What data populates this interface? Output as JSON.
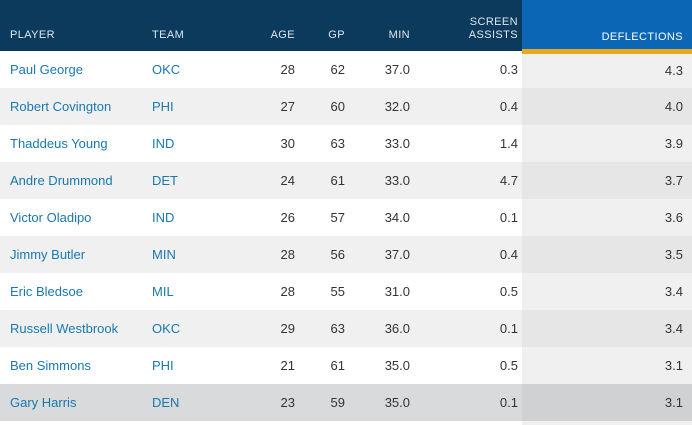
{
  "colors": {
    "header_bg": "#0c3a5d",
    "selected_header_bg": "#0b67b5",
    "accent_gold": "#eaa821",
    "link_blue": "#1878b0",
    "row_alt_bg": "#f0f0f0",
    "highlight_row_bg": "#d9dadb",
    "body_text": "#333333"
  },
  "table": {
    "highlighted_row_index": 9,
    "columns": [
      {
        "key": "player",
        "label": "PLAYER",
        "align": "left",
        "selected": false
      },
      {
        "key": "team",
        "label": "TEAM",
        "align": "left",
        "selected": false
      },
      {
        "key": "age",
        "label": "AGE",
        "align": "right",
        "selected": false
      },
      {
        "key": "gp",
        "label": "GP",
        "align": "right",
        "selected": false
      },
      {
        "key": "min",
        "label": "MIN",
        "align": "right",
        "selected": false
      },
      {
        "key": "screen_assists",
        "label": "SCREEN ASSISTS",
        "align": "right",
        "selected": false
      },
      {
        "key": "deflections",
        "label": "DEFLECTIONS",
        "align": "right",
        "selected": true
      }
    ],
    "rows": [
      {
        "player": "Paul George",
        "team": "OKC",
        "age": "28",
        "gp": "62",
        "min": "37.0",
        "screen_assists": "0.3",
        "deflections": "4.3"
      },
      {
        "player": "Robert Covington",
        "team": "PHI",
        "age": "27",
        "gp": "60",
        "min": "32.0",
        "screen_assists": "0.4",
        "deflections": "4.0"
      },
      {
        "player": "Thaddeus Young",
        "team": "IND",
        "age": "30",
        "gp": "63",
        "min": "33.0",
        "screen_assists": "1.4",
        "deflections": "3.9"
      },
      {
        "player": "Andre Drummond",
        "team": "DET",
        "age": "24",
        "gp": "61",
        "min": "33.0",
        "screen_assists": "4.7",
        "deflections": "3.7"
      },
      {
        "player": "Victor Oladipo",
        "team": "IND",
        "age": "26",
        "gp": "57",
        "min": "34.0",
        "screen_assists": "0.1",
        "deflections": "3.6"
      },
      {
        "player": "Jimmy Butler",
        "team": "MIN",
        "age": "28",
        "gp": "56",
        "min": "37.0",
        "screen_assists": "0.4",
        "deflections": "3.5"
      },
      {
        "player": "Eric Bledsoe",
        "team": "MIL",
        "age": "28",
        "gp": "55",
        "min": "31.0",
        "screen_assists": "0.5",
        "deflections": "3.4"
      },
      {
        "player": "Russell Westbrook",
        "team": "OKC",
        "age": "29",
        "gp": "63",
        "min": "36.0",
        "screen_assists": "0.1",
        "deflections": "3.4"
      },
      {
        "player": "Ben Simmons",
        "team": "PHI",
        "age": "21",
        "gp": "61",
        "min": "35.0",
        "screen_assists": "0.5",
        "deflections": "3.1"
      },
      {
        "player": "Gary Harris",
        "team": "DEN",
        "age": "23",
        "gp": "59",
        "min": "35.0",
        "screen_assists": "0.1",
        "deflections": "3.1"
      }
    ]
  }
}
